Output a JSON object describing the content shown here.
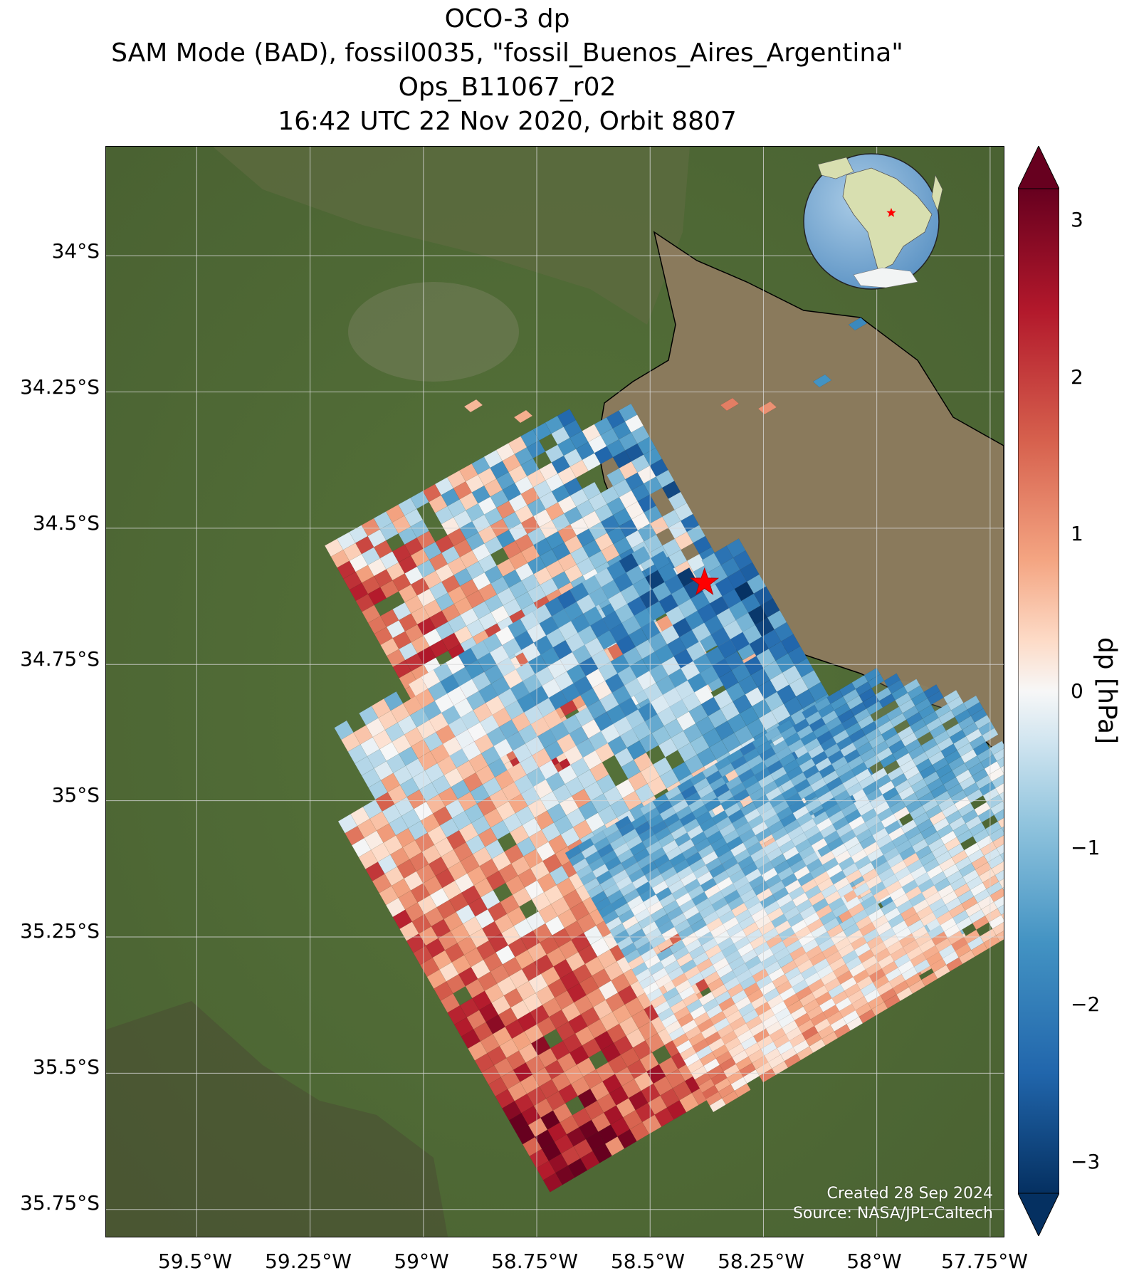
{
  "title": {
    "line1": "OCO-3 dp",
    "line2": "SAM Mode (BAD), fossil0035, \"fossil_Buenos_Aires_Argentina\"",
    "line3": "Ops_B11067_r02",
    "line4": "16:42 UTC 22 Nov 2020, Orbit 8807"
  },
  "map": {
    "lat_labels": [
      "34°S",
      "34.25°S",
      "34.5°S",
      "34.75°S",
      "35°S",
      "35.25°S",
      "35.5°S",
      "35.75°S"
    ],
    "lon_labels": [
      "59.5°W",
      "59.25°W",
      "59°W",
      "58.75°W",
      "58.5°W",
      "58.25°W",
      "58°W",
      "57.75°W"
    ],
    "lat_range": [
      -35.8,
      -33.8
    ],
    "lon_range": [
      -59.7,
      -57.72
    ],
    "target_marker": {
      "lat": -34.6,
      "lon": -58.38,
      "symbol": "red-star"
    },
    "colors": {
      "land": "#4f6b33",
      "water": "#8a7a5c",
      "grid": "#d8d8d8"
    }
  },
  "colorbar": {
    "label": "dp [hPa]",
    "ticks": [
      "3",
      "2",
      "1",
      "0",
      "−1",
      "−2",
      "−3"
    ],
    "tick_values": [
      3,
      2,
      1,
      0,
      -1,
      -2,
      -3
    ],
    "range": [
      -3.2,
      3.2
    ],
    "colormap": "RdBu_r",
    "extend": "both"
  },
  "credits": {
    "created": "Created 28 Sep 2024",
    "source": "Source: NASA/JPL-Caltech"
  }
}
